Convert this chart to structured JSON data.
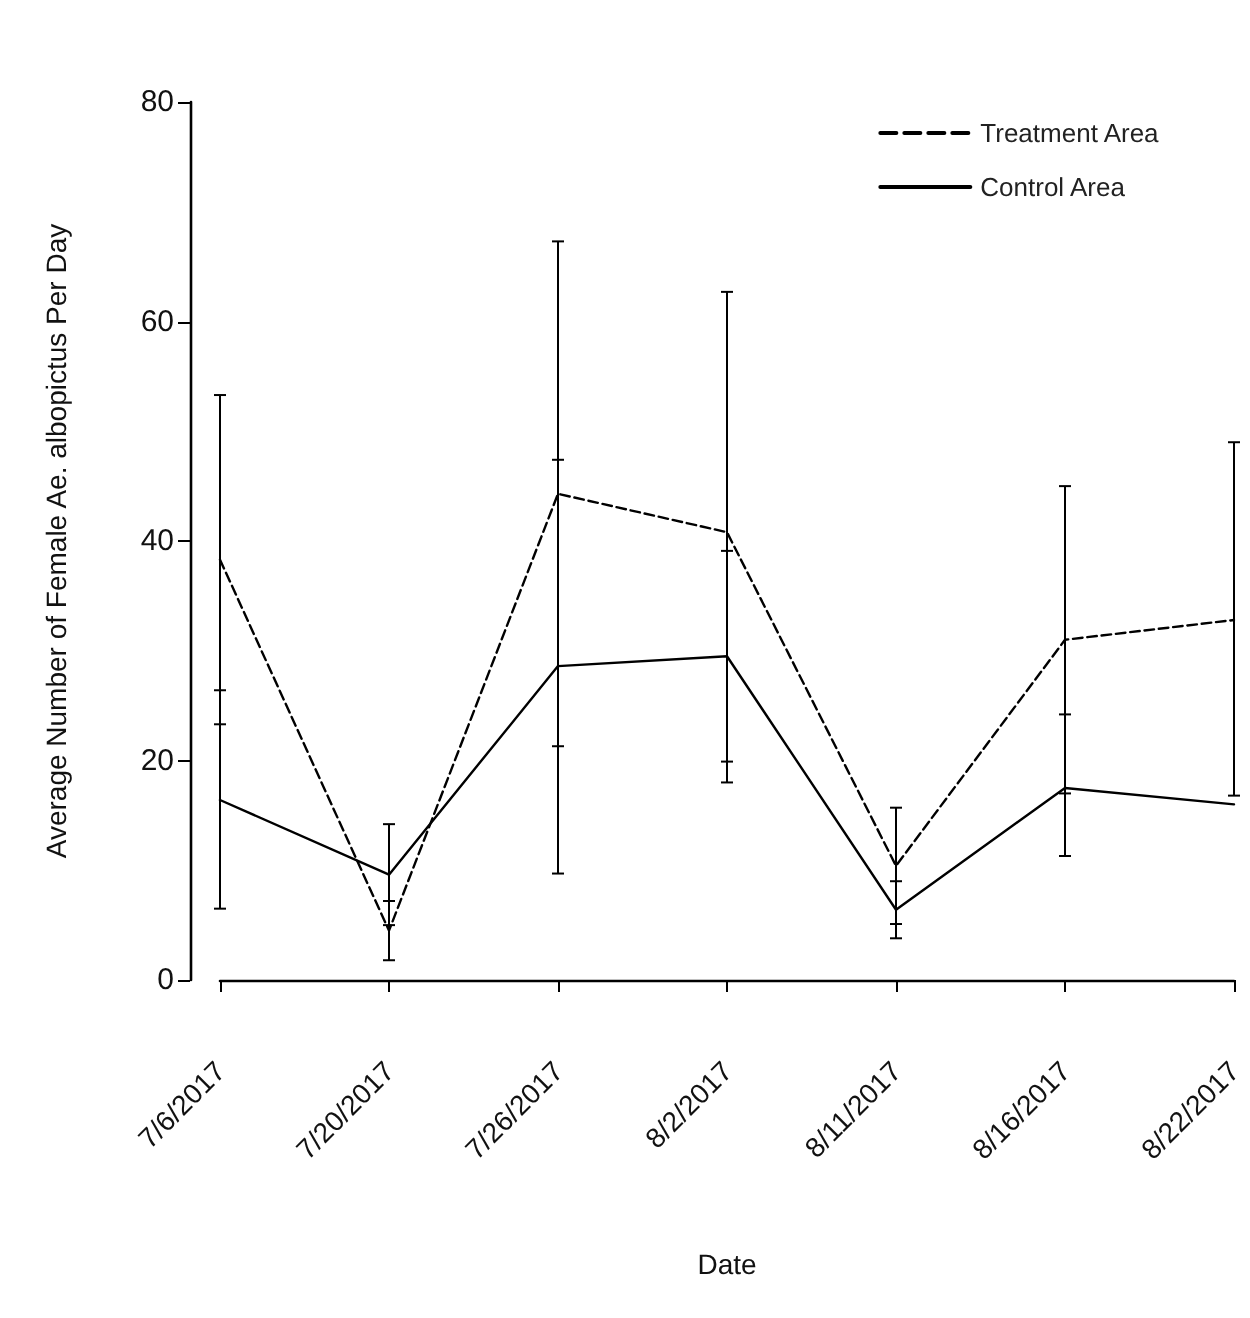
{
  "chart_data": {
    "type": "line",
    "xlabel": "Date",
    "ylabel": "Average Number of Female Ae. albopictus Per Day",
    "categories": [
      "7/6/2017",
      "7/20/2017",
      "7/26/2017",
      "8/2/2017",
      "8/11/2017",
      "8/16/2017",
      "8/22/2017"
    ],
    "series": [
      {
        "name": "Treatment Area",
        "color": "#000000",
        "line_style": "dashed",
        "values": [
          38.3,
          4.5,
          44.3,
          40.8,
          10.4,
          31.0,
          32.8
        ],
        "errors": [
          [
            23.3,
            53.3
          ],
          [
            1.8,
            7.2
          ],
          [
            21.3,
            67.3
          ],
          [
            18.0,
            62.7
          ],
          [
            5.1,
            15.7
          ],
          [
            17.0,
            45.0
          ],
          [
            16.8,
            49.0
          ]
        ]
      },
      {
        "name": "Control Area",
        "color": "#000000",
        "line_style": "solid",
        "values": [
          16.4,
          9.6,
          28.6,
          29.5,
          6.4,
          17.5,
          16.0
        ],
        "errors": [
          [
            6.5,
            26.4
          ],
          [
            5.0,
            14.2
          ],
          [
            9.7,
            47.4
          ],
          [
            19.9,
            39.1
          ],
          [
            3.8,
            9.0
          ],
          [
            11.3,
            24.2
          ],
          null
        ]
      }
    ],
    "ylim": [
      0,
      80
    ],
    "yticks": [
      0,
      20,
      40,
      60,
      80
    ],
    "grid": false,
    "legend": "top right",
    "marker": "none"
  }
}
